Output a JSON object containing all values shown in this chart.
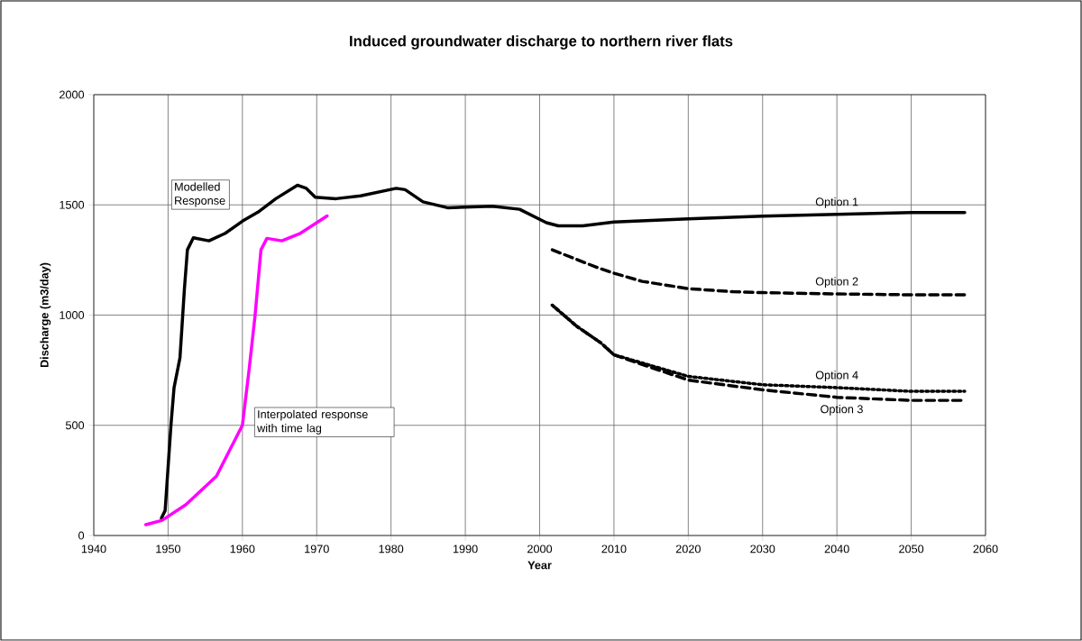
{
  "chart_data": {
    "type": "line",
    "title": "Induced groundwater discharge to northern river flats",
    "xlabel": "Year",
    "ylabel": "Discharge (m3/day)",
    "xlim": [
      1940,
      2060
    ],
    "xticks": [
      1940,
      1950,
      1960,
      1970,
      1980,
      1990,
      2000,
      2010,
      2020,
      2030,
      2040,
      2050,
      2060
    ],
    "ylim": [
      0,
      2000
    ],
    "yticks": [
      0,
      500,
      1000,
      1500,
      2000
    ],
    "grid": true,
    "marker": "none",
    "annotations": [
      {
        "text": "Option 1",
        "x": 2040,
        "y": 1457
      }
    ],
    "series": [
      {
        "name": "Modelled Response",
        "color": "#000000",
        "line_style": "solid",
        "x": [
          1949.1,
          1949.6,
          1950.4,
          1950.8,
          1951.6,
          1952.2,
          1952.6,
          1953.4,
          1955.5,
          1957.7,
          1960,
          1962.1,
          1964.5,
          1967.4,
          1968.6,
          1969.8,
          1972.6,
          1975.9,
          1980.7,
          1981.9,
          1984.3,
          1987.6,
          1993.6,
          1997.3,
          2000.9,
          2002.5,
          2005.8,
          2010,
          2020,
          2030,
          2040,
          2050,
          2057.2
        ],
        "values": [
          79,
          113,
          507,
          670,
          806,
          1120,
          1296,
          1351,
          1337,
          1371,
          1426,
          1467,
          1528,
          1589,
          1575,
          1535,
          1528,
          1541,
          1575,
          1569,
          1514,
          1487,
          1494,
          1480,
          1419,
          1405,
          1405,
          1422,
          1437,
          1449,
          1457,
          1465,
          1465
        ]
      },
      {
        "name": "Interpolated response with time lag",
        "color": "#ff00ff",
        "line_style": "solid",
        "x": [
          1947,
          1949.2,
          1952.4,
          1956.5,
          1960,
          1960.9,
          1961.7,
          1962.5,
          1963.3,
          1965.3,
          1967.8,
          1971.4
        ],
        "values": [
          49,
          69,
          140,
          269,
          500,
          752,
          997,
          1296,
          1348,
          1337,
          1371,
          1450
        ]
      },
      {
        "name": "Option 2",
        "color": "#000000",
        "line_style": "dashed",
        "x": [
          2001.7,
          2007.8,
          2010,
          2013.8,
          2020,
          2026,
          2030,
          2040,
          2050,
          2057.2
        ],
        "values": [
          1296,
          1215,
          1190,
          1153,
          1120,
          1106,
          1102,
          1096,
          1092,
          1092
        ]
      },
      {
        "name": "Option 3",
        "color": "#000000",
        "line_style": "dashed",
        "x": [
          2001.7,
          2005,
          2008.2,
          2010,
          2020,
          2030,
          2040,
          2050,
          2057.2
        ],
        "values": [
          1045,
          949,
          875,
          820,
          705,
          661,
          627,
          613,
          613
        ]
      },
      {
        "name": "Option 4",
        "color": "#000000",
        "line_style": "dotted",
        "x": [
          2001.7,
          2005,
          2008.2,
          2010,
          2020,
          2030,
          2040,
          2050,
          2057.2
        ],
        "values": [
          1045,
          949,
          875,
          820,
          722,
          684,
          671,
          654,
          654
        ]
      }
    ]
  }
}
